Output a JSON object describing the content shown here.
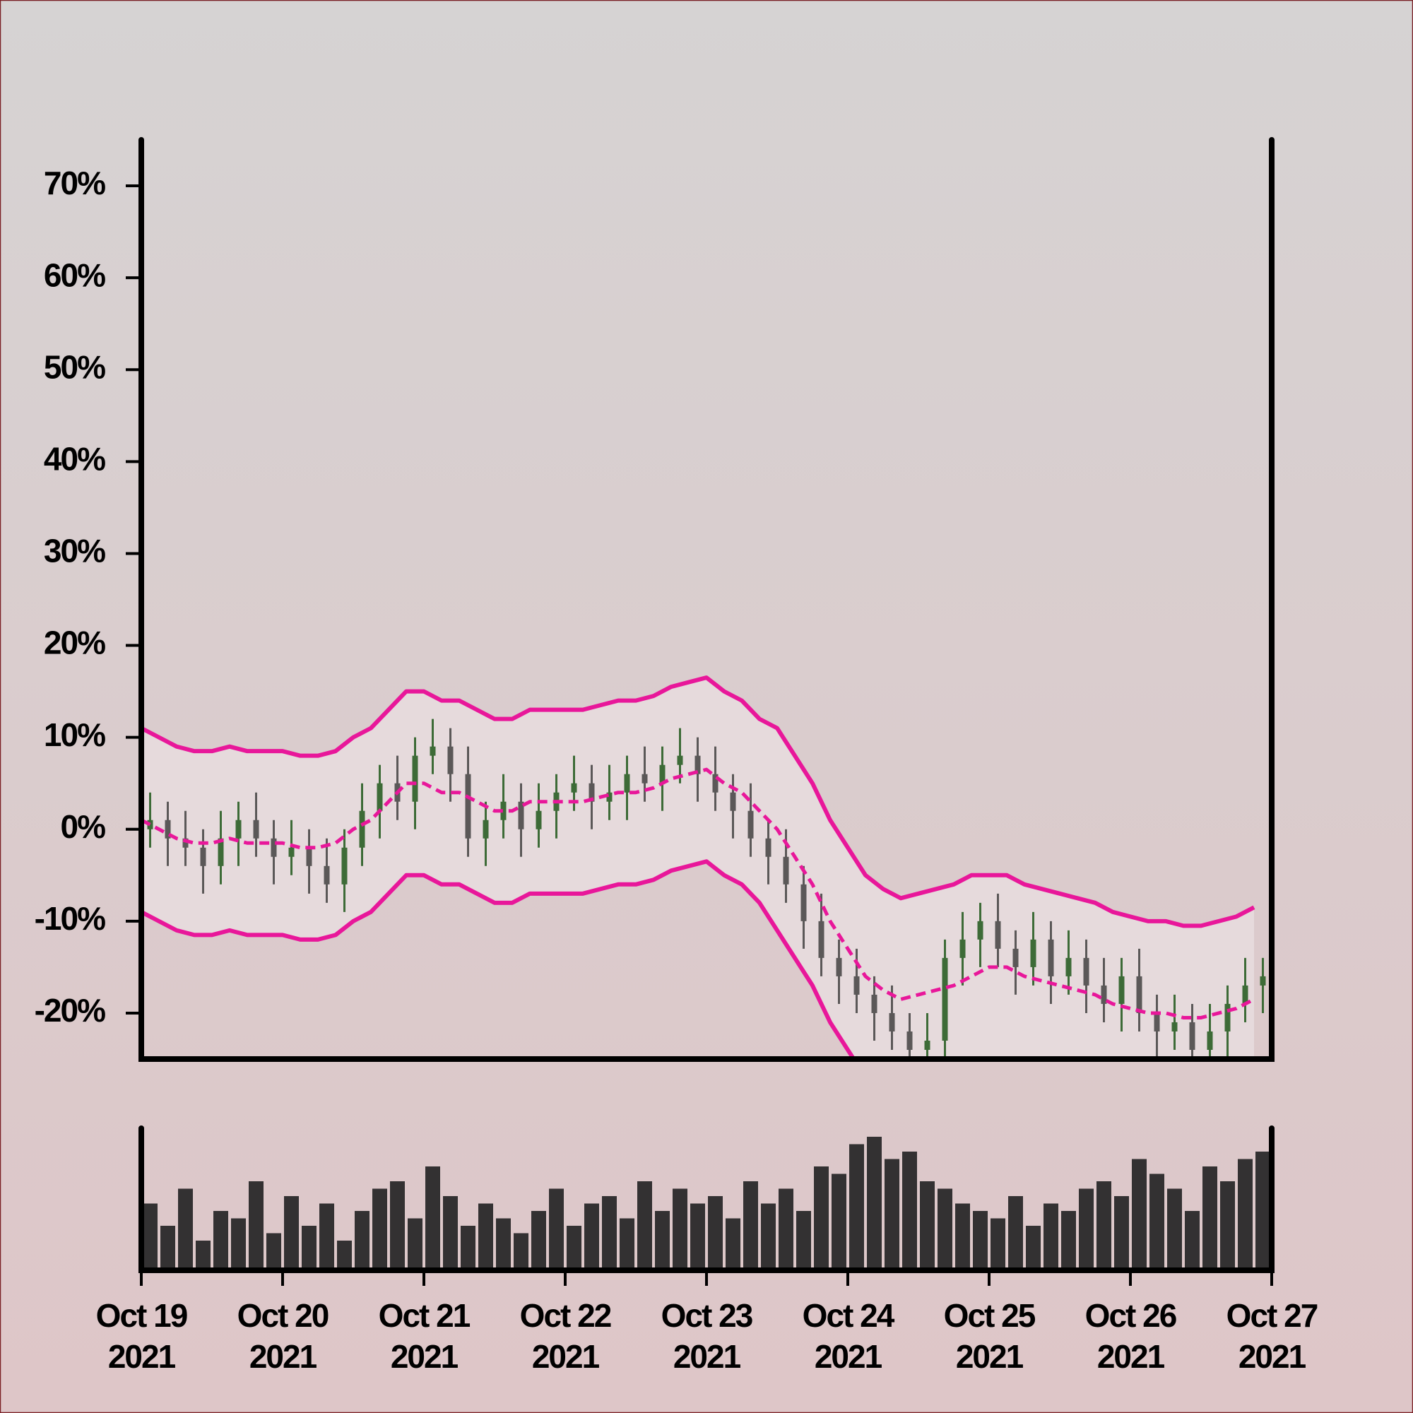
{
  "chart_data": {
    "type": "candlestick",
    "x": [
      "2021-10-19T00:00",
      "2021-10-19T03:00",
      "2021-10-19T06:00",
      "2021-10-19T09:00",
      "2021-10-19T12:00",
      "2021-10-19T15:00",
      "2021-10-19T18:00",
      "2021-10-19T21:00",
      "2021-10-20T00:00",
      "2021-10-20T03:00",
      "2021-10-20T06:00",
      "2021-10-20T09:00",
      "2021-10-20T12:00",
      "2021-10-20T15:00",
      "2021-10-20T18:00",
      "2021-10-20T21:00",
      "2021-10-21T00:00",
      "2021-10-21T03:00",
      "2021-10-21T06:00",
      "2021-10-21T09:00",
      "2021-10-21T12:00",
      "2021-10-21T15:00",
      "2021-10-21T18:00",
      "2021-10-21T21:00",
      "2021-10-22T00:00",
      "2021-10-22T03:00",
      "2021-10-22T06:00",
      "2021-10-22T09:00",
      "2021-10-22T12:00",
      "2021-10-22T15:00",
      "2021-10-22T18:00",
      "2021-10-22T21:00",
      "2021-10-23T00:00",
      "2021-10-23T03:00",
      "2021-10-23T06:00",
      "2021-10-23T09:00",
      "2021-10-23T12:00",
      "2021-10-23T15:00",
      "2021-10-23T18:00",
      "2021-10-23T21:00",
      "2021-10-24T00:00",
      "2021-10-24T03:00",
      "2021-10-24T06:00",
      "2021-10-24T09:00",
      "2021-10-24T12:00",
      "2021-10-24T15:00",
      "2021-10-24T18:00",
      "2021-10-24T21:00",
      "2021-10-25T00:00",
      "2021-10-25T03:00",
      "2021-10-25T06:00",
      "2021-10-25T09:00",
      "2021-10-25T12:00",
      "2021-10-25T15:00",
      "2021-10-25T18:00",
      "2021-10-25T21:00",
      "2021-10-26T00:00",
      "2021-10-26T03:00",
      "2021-10-26T06:00",
      "2021-10-26T09:00",
      "2021-10-26T12:00",
      "2021-10-26T15:00",
      "2021-10-26T18:00",
      "2021-10-26T21:00"
    ],
    "open": [
      0,
      1,
      -1,
      -2,
      -4,
      -1,
      1,
      -1,
      -3,
      -2,
      -4,
      -6,
      -2,
      2,
      5,
      3,
      8,
      9,
      6,
      -1,
      1,
      3,
      0,
      2,
      4,
      5,
      3,
      4,
      6,
      5,
      7,
      8,
      6,
      4,
      2,
      -1,
      -3,
      -6,
      -10,
      -14,
      -16,
      -18,
      -20,
      -22,
      -24,
      -23,
      -14,
      -12,
      -10,
      -13,
      -15,
      -12,
      -16,
      -14,
      -17,
      -19,
      -16,
      -20,
      -22,
      -21,
      -24,
      -22,
      -19,
      -17
    ],
    "high": [
      4,
      3,
      2,
      0,
      2,
      3,
      4,
      1,
      1,
      0,
      -1,
      0,
      5,
      7,
      8,
      10,
      12,
      11,
      9,
      3,
      6,
      5,
      5,
      6,
      8,
      7,
      7,
      8,
      9,
      9,
      11,
      10,
      9,
      6,
      5,
      1,
      0,
      -4,
      -7,
      -12,
      -13,
      -16,
      -17,
      -20,
      -20,
      -12,
      -9,
      -8,
      -7,
      -11,
      -9,
      -10,
      -11,
      -12,
      -14,
      -14,
      -13,
      -18,
      -18,
      -19,
      -19,
      -17,
      -14,
      -14
    ],
    "low": [
      -2,
      -4,
      -4,
      -7,
      -6,
      -4,
      -3,
      -6,
      -5,
      -7,
      -8,
      -9,
      -4,
      -1,
      1,
      0,
      6,
      3,
      -3,
      -4,
      -1,
      -3,
      -2,
      -1,
      2,
      0,
      1,
      1,
      3,
      2,
      5,
      3,
      2,
      -1,
      -3,
      -6,
      -8,
      -13,
      -16,
      -19,
      -20,
      -23,
      -24,
      -27,
      -26,
      -26,
      -17,
      -15,
      -15,
      -18,
      -17,
      -19,
      -18,
      -20,
      -21,
      -22,
      -22,
      -25,
      -24,
      -27,
      -26,
      -25,
      -21,
      -20
    ],
    "close": [
      1,
      -1,
      -2,
      -4,
      -1,
      1,
      -1,
      -3,
      -2,
      -4,
      -6,
      -2,
      2,
      5,
      3,
      8,
      9,
      6,
      -1,
      1,
      3,
      0,
      2,
      4,
      5,
      3,
      4,
      6,
      5,
      7,
      8,
      6,
      4,
      2,
      -1,
      -3,
      -6,
      -10,
      -14,
      -16,
      -18,
      -20,
      -22,
      -24,
      -23,
      -14,
      -12,
      -10,
      -13,
      -15,
      -12,
      -16,
      -14,
      -17,
      -19,
      -16,
      -20,
      -22,
      -21,
      -24,
      -22,
      -19,
      -17,
      -16
    ],
    "up_color": "#3d6b37",
    "down_color": "#5b5858",
    "bands": {
      "color": "#e8179a",
      "fill": "#e6dadc",
      "upper": [
        11,
        10,
        9,
        8.5,
        8.5,
        9,
        8.5,
        8.5,
        8.5,
        8,
        8,
        8.5,
        10,
        11,
        13,
        15,
        15,
        14,
        14,
        13,
        12,
        12,
        13,
        13,
        13,
        13,
        13.5,
        14,
        14,
        14.5,
        15.5,
        16,
        16.5,
        15,
        14,
        12,
        11,
        8,
        5,
        1,
        -2,
        -5,
        -6.5,
        -7.5,
        -7,
        -6.5,
        -6,
        -5,
        -5,
        -5,
        -6,
        -6.5,
        -7,
        -7.5,
        -8,
        -9,
        -9.5,
        -10,
        -10,
        -10.5,
        -10.5,
        -10,
        -9.5,
        -8.5
      ],
      "middle": [
        1,
        0,
        -1,
        -1.5,
        -1.5,
        -1,
        -1.5,
        -1.5,
        -1.5,
        -2,
        -2,
        -1.5,
        0,
        1,
        3,
        5,
        5,
        4,
        4,
        3,
        2,
        2,
        3,
        3,
        3,
        3,
        3.5,
        4,
        4,
        4.5,
        5.5,
        6,
        6.5,
        5,
        4,
        2,
        0,
        -3,
        -6,
        -10,
        -13,
        -16,
        -17.5,
        -18.5,
        -18,
        -17.5,
        -17,
        -16,
        -15,
        -15,
        -16,
        -16.5,
        -17,
        -17.5,
        -18,
        -19,
        -19.5,
        -20,
        -20,
        -20.5,
        -20.5,
        -20,
        -19.5,
        -18.5
      ],
      "lower": [
        -9,
        -10,
        -11,
        -11.5,
        -11.5,
        -11,
        -11.5,
        -11.5,
        -11.5,
        -12,
        -12,
        -11.5,
        -10,
        -9,
        -7,
        -5,
        -5,
        -6,
        -6,
        -7,
        -8,
        -8,
        -7,
        -7,
        -7,
        -7,
        -6.5,
        -6,
        -6,
        -5.5,
        -4.5,
        -4,
        -3.5,
        -5,
        -6,
        -8,
        -11,
        -14,
        -17,
        -21,
        -24,
        -27,
        -28.5,
        -29.5,
        -29,
        -28.5,
        -28,
        -27,
        -25,
        -25,
        -26,
        -26.5,
        -27,
        -27.5,
        -28,
        -29,
        -29.5,
        -30,
        -30,
        -30.5,
        -30.5,
        -30,
        -29.5,
        -28.5
      ]
    },
    "volume": {
      "color": "#333132",
      "values": [
        45,
        30,
        55,
        20,
        40,
        35,
        60,
        25,
        50,
        30,
        45,
        20,
        40,
        55,
        60,
        35,
        70,
        50,
        30,
        45,
        35,
        25,
        40,
        55,
        30,
        45,
        50,
        35,
        60,
        40,
        55,
        45,
        50,
        35,
        60,
        45,
        55,
        40,
        70,
        65,
        85,
        90,
        75,
        80,
        60,
        55,
        45,
        40,
        35,
        50,
        30,
        45,
        40,
        55,
        60,
        50,
        75,
        65,
        55,
        40,
        70,
        60,
        75,
        80
      ]
    },
    "ylim": [
      -25,
      75
    ],
    "yticks": [
      {
        "value": -20,
        "label": "-20%"
      },
      {
        "value": -10,
        "label": "-10%"
      },
      {
        "value": 0,
        "label": "0%"
      },
      {
        "value": 10,
        "label": "10%"
      },
      {
        "value": 20,
        "label": "20%"
      },
      {
        "value": 30,
        "label": "30%"
      },
      {
        "value": 40,
        "label": "40%"
      },
      {
        "value": 50,
        "label": "50%"
      },
      {
        "value": 60,
        "label": "60%"
      },
      {
        "value": 70,
        "label": "70%"
      }
    ],
    "xlim": [
      "2021-10-19",
      "2021-10-27"
    ],
    "xticks": [
      {
        "value": "2021-10-19",
        "label": [
          "Oct 19",
          "2021"
        ]
      },
      {
        "value": "2021-10-20",
        "label": [
          "Oct 20",
          "2021"
        ]
      },
      {
        "value": "2021-10-21",
        "label": [
          "Oct 21",
          "2021"
        ]
      },
      {
        "value": "2021-10-22",
        "label": [
          "Oct 22",
          "2021"
        ]
      },
      {
        "value": "2021-10-23",
        "label": [
          "Oct 23",
          "2021"
        ]
      },
      {
        "value": "2021-10-24",
        "label": [
          "Oct 24",
          "2021"
        ]
      },
      {
        "value": "2021-10-25",
        "label": [
          "Oct 25",
          "2021"
        ]
      },
      {
        "value": "2021-10-26",
        "label": [
          "Oct 26",
          "2021"
        ]
      },
      {
        "value": "2021-10-27",
        "label": [
          "Oct 27",
          "2021"
        ]
      }
    ]
  }
}
